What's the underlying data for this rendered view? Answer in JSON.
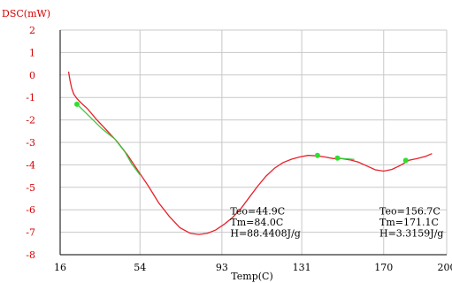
{
  "chart_data": {
    "type": "line",
    "title": "",
    "ylabel": "DSC(mW)",
    "xlabel": "Temp(C)",
    "xlim": [
      16,
      200
    ],
    "ylim": [
      -8,
      2
    ],
    "xticks": [
      16,
      54,
      93,
      131,
      170,
      200
    ],
    "xtick_labels": [
      "16",
      "54",
      "93",
      "131",
      "170",
      "200"
    ],
    "yticks": [
      2,
      1,
      0,
      -1,
      -2,
      -3,
      -4,
      -5,
      -6,
      -7,
      -8
    ],
    "ytick_labels": [
      "2",
      "1",
      "0",
      "-1",
      "-2",
      "-3",
      "-4",
      "-5",
      "-6",
      "-7",
      "-8"
    ],
    "grid": true,
    "series": [
      {
        "color": "#e8202a",
        "x": [
          20,
          20.7,
          21.5,
          22.5,
          24,
          26,
          29,
          33,
          38,
          43,
          48,
          53,
          58,
          63,
          68,
          73,
          78,
          82,
          86,
          90,
          94,
          98,
          102,
          106,
          110,
          114,
          118,
          122,
          126,
          130,
          134,
          138,
          142,
          146,
          150,
          154,
          158,
          162,
          166,
          170,
          174,
          178,
          182,
          186,
          190,
          193
        ],
        "y": [
          0.15,
          -0.25,
          -0.6,
          -0.85,
          -1.05,
          -1.25,
          -1.5,
          -1.95,
          -2.45,
          -2.95,
          -3.55,
          -4.25,
          -4.95,
          -5.7,
          -6.3,
          -6.8,
          -7.05,
          -7.1,
          -7.05,
          -6.9,
          -6.65,
          -6.35,
          -5.95,
          -5.45,
          -4.95,
          -4.5,
          -4.15,
          -3.9,
          -3.75,
          -3.65,
          -3.58,
          -3.6,
          -3.65,
          -3.72,
          -3.72,
          -3.78,
          -3.88,
          -4.05,
          -4.22,
          -4.28,
          -4.2,
          -4.02,
          -3.8,
          -3.72,
          -3.62,
          -3.5
        ]
      },
      {
        "color": "#3ec63e",
        "x": [
          24,
          30,
          36,
          42,
          47,
          50,
          54
        ],
        "y": [
          -1.3,
          -1.85,
          -2.4,
          -2.85,
          -3.45,
          -3.95,
          -4.45
        ]
      },
      {
        "color": "#3ec63e",
        "x": [
          148,
          156
        ],
        "y": [
          -3.7,
          -3.76
        ]
      }
    ],
    "markers": [
      {
        "x": 24,
        "y": -1.3,
        "color": "#2ee02e"
      },
      {
        "x": 138.5,
        "y": -3.58,
        "color": "#2ee02e"
      },
      {
        "x": 148,
        "y": -3.7,
        "color": "#2ee02e"
      },
      {
        "x": 180.5,
        "y": -3.8,
        "color": "#2ee02e"
      }
    ],
    "annotations": [
      {
        "x": 97,
        "y": -6.2,
        "lines": [
          "Teo=44.9C",
          "Tm=84.0C",
          "H=88.4408J/g"
        ]
      },
      {
        "x": 168,
        "y": -6.2,
        "lines": [
          "Teo=156.7C",
          "Tm=171.1C",
          "H=3.3159J/g"
        ]
      }
    ]
  },
  "colors": {
    "axis_label": "#d40000",
    "grid": "#c8c8c8"
  }
}
